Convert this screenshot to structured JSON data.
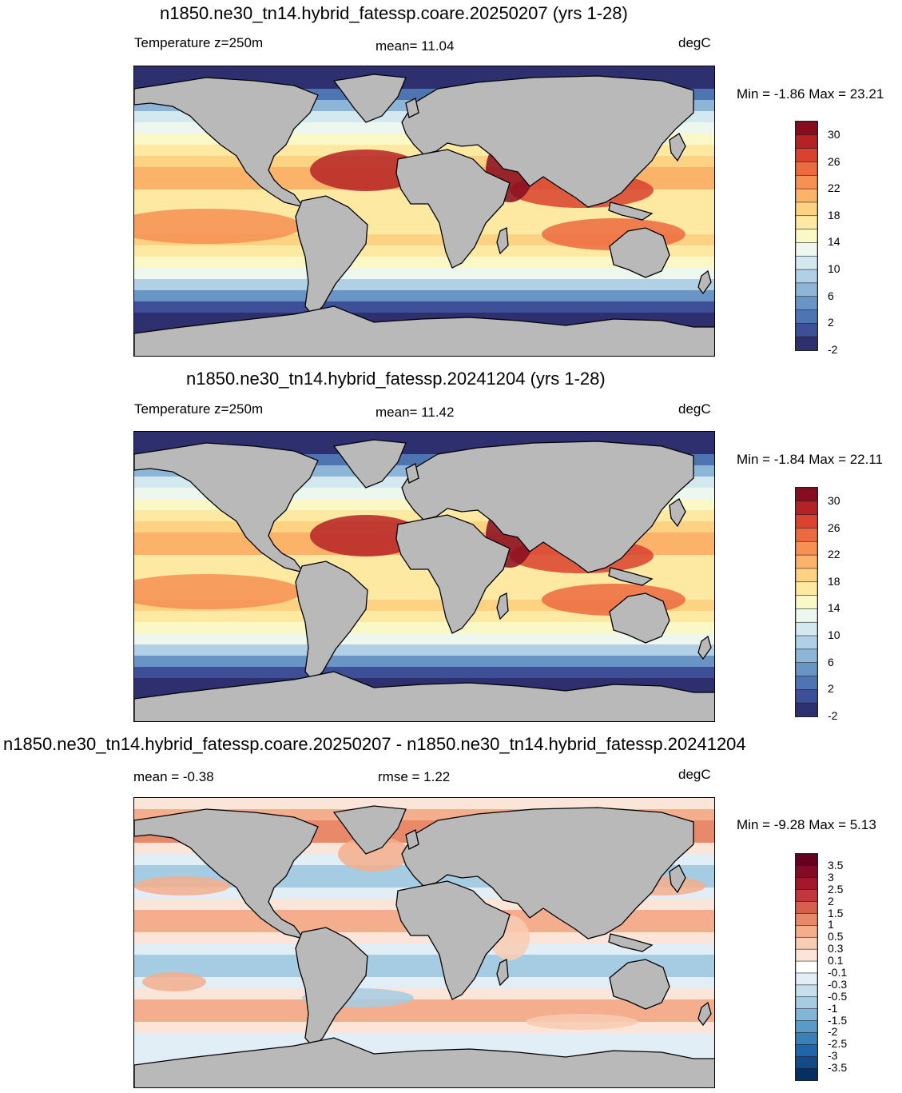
{
  "panels": [
    {
      "title": "n1850.ne30_tn14.hybrid_fatessp.coare.20250207 (yrs 1-28)",
      "left_label": "Temperature z=250m",
      "center_label": "mean=  11.04",
      "units": "degC",
      "minmax": "Min =  -1.86 Max =  23.21",
      "colorbar_labels": [
        "30",
        "26",
        "22",
        "18",
        "14",
        "10",
        "6",
        "2",
        "-2"
      ],
      "palette": [
        "#2e2f6e",
        "#3c4f97",
        "#4f74b2",
        "#6895c6",
        "#8db5d7",
        "#b2d0e5",
        "#d4e8f0",
        "#eef7ee",
        "#fbf8c8",
        "#fde9a2",
        "#fdd282",
        "#fbb369",
        "#f69152",
        "#ec6a3f",
        "#d8422f",
        "#b52225",
        "#870c20"
      ]
    },
    {
      "title": "n1850.ne30_tn14.hybrid_fatessp.20241204 (yrs 1-28)",
      "left_label": "Temperature z=250m",
      "center_label": "mean=  11.42",
      "units": "degC",
      "minmax": "Min =  -1.84 Max =  22.11",
      "colorbar_labels": [
        "30",
        "26",
        "22",
        "18",
        "14",
        "10",
        "6",
        "2",
        "-2"
      ],
      "palette": [
        "#2e2f6e",
        "#3c4f97",
        "#4f74b2",
        "#6895c6",
        "#8db5d7",
        "#b2d0e5",
        "#d4e8f0",
        "#eef7ee",
        "#fbf8c8",
        "#fde9a2",
        "#fdd282",
        "#fbb369",
        "#f69152",
        "#ec6a3f",
        "#d8422f",
        "#b52225",
        "#870c20"
      ]
    },
    {
      "title": "n1850.ne30_tn14.hybrid_fatessp.coare.20250207 - n1850.ne30_tn14.hybrid_fatessp.20241204",
      "left_label": "mean =  -0.38",
      "center_label": "rmse =   1.22",
      "units": "degC",
      "minmax": "Min =  -9.28 Max =   5.13",
      "colorbar_labels": [
        "3.5",
        "3",
        "2.5",
        "2",
        "1.5",
        "1",
        "0.5",
        "0.3",
        "0.1",
        "-0.1",
        "-0.3",
        "-0.5",
        "-1",
        "-1.5",
        "-2",
        "-2.5",
        "-3",
        "-3.5"
      ],
      "palette": [
        "#053061",
        "#124b87",
        "#2166ac",
        "#3a7fb8",
        "#5a9ac9",
        "#80b6d7",
        "#a5cce3",
        "#c6dfec",
        "#e2eef5",
        "#ffffff",
        "#fbe5d8",
        "#f7cdb3",
        "#f4ae8d",
        "#e8896a",
        "#d6604d",
        "#c1383b",
        "#a5182c",
        "#850a24",
        "#67001f"
      ]
    }
  ],
  "land_color": "#b9b9b9"
}
